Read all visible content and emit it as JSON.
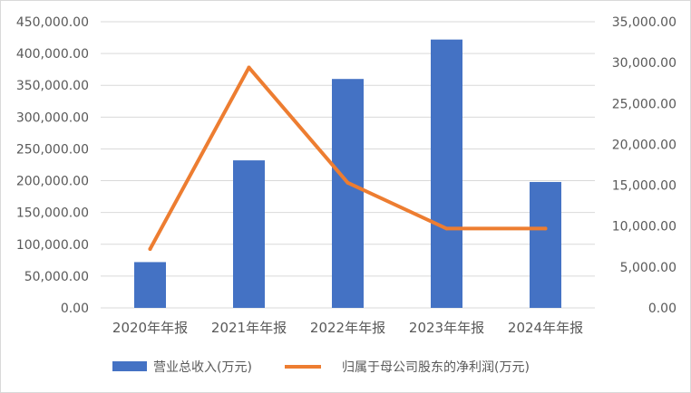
{
  "chart_data": {
    "type": "bar+line",
    "categories": [
      "2020年年报",
      "2021年年报",
      "2022年年报",
      "2023年年报",
      "2024年年报"
    ],
    "series": [
      {
        "name": "营业总收入(万元)",
        "type": "bar",
        "axis": "left",
        "color": "#4472C4",
        "values": [
          72000,
          232000,
          360000,
          422000,
          198000
        ]
      },
      {
        "name": "归属于母公司股东的净利润(万元)",
        "type": "line",
        "axis": "right",
        "color": "#ED7D31",
        "values": [
          7200,
          29400,
          15300,
          9700,
          9700
        ]
      }
    ],
    "y_left": {
      "ylim": [
        0,
        450000
      ],
      "ticks": [
        "0.00",
        "50,000.00",
        "100,000.00",
        "150,000.00",
        "200,000.00",
        "250,000.00",
        "300,000.00",
        "350,000.00",
        "400,000.00",
        "450,000.00"
      ]
    },
    "y_right": {
      "ylim": [
        0,
        35000
      ],
      "ticks": [
        "0.00",
        "5,000.00",
        "10,000.00",
        "15,000.00",
        "20,000.00",
        "25,000.00",
        "30,000.00",
        "35,000.00"
      ]
    },
    "grid": true,
    "legend": "bottom"
  }
}
